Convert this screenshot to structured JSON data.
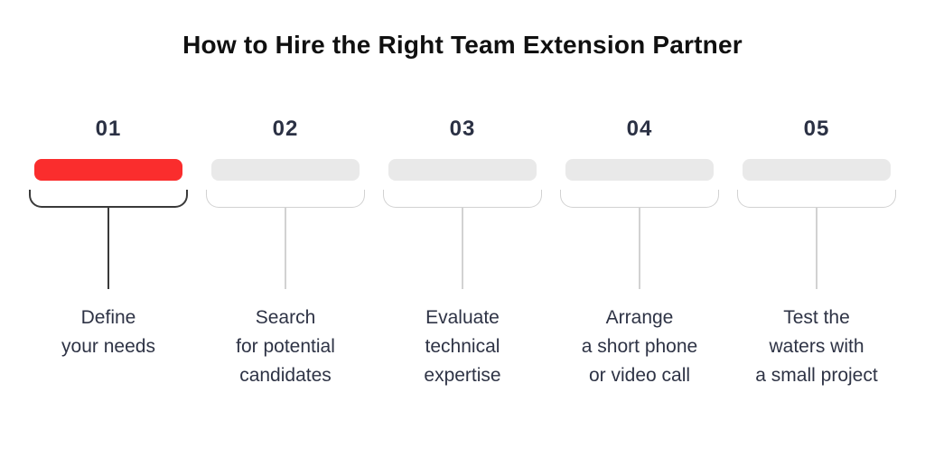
{
  "title": "How to Hire the Right Team Extension Partner",
  "colors": {
    "background": "#FFFFFF",
    "title_text": "#101010",
    "accent_red": "#FA2D2D",
    "inactive_bar": "#E9E9E9",
    "active_stroke": "#3A3A3A",
    "inactive_stroke": "#D2D2D2",
    "body_text": "#2E3345"
  },
  "steps": [
    {
      "number": "01",
      "label": "Define\nyour needs",
      "active": true
    },
    {
      "number": "02",
      "label": "Search\nfor potential\ncandidates",
      "active": false
    },
    {
      "number": "03",
      "label": "Evaluate\ntechnical\nexpertise",
      "active": false
    },
    {
      "number": "04",
      "label": "Arrange\na short phone\nor video call",
      "active": false
    },
    {
      "number": "05",
      "label": "Test the\nwaters with\na small project",
      "active": false
    }
  ]
}
